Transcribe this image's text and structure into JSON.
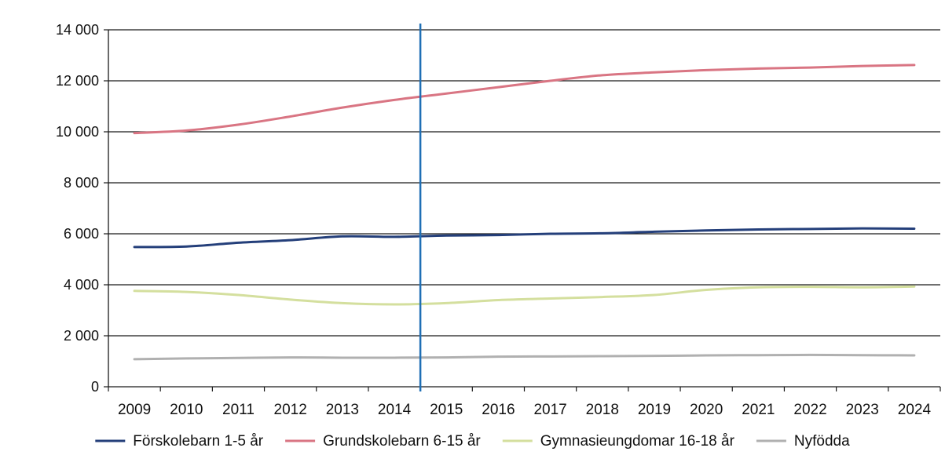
{
  "chart_data": {
    "type": "line",
    "title": "",
    "xlabel": "",
    "ylabel": "",
    "x": [
      "2009",
      "2010",
      "2011",
      "2012",
      "2013",
      "2014",
      "2015",
      "2016",
      "2017",
      "2018",
      "2019",
      "2020",
      "2021",
      "2022",
      "2023",
      "2024"
    ],
    "ylim": [
      0,
      14000
    ],
    "yticks": [
      0,
      2000,
      4000,
      6000,
      8000,
      10000,
      12000,
      14000
    ],
    "ytick_labels": [
      "0",
      "2 000",
      "4 000",
      "6 000",
      "8 000",
      "10 000",
      "12 000",
      "14 000"
    ],
    "grid": "horizontal",
    "legend_position": "bottom",
    "marker_year": "2014",
    "marker_color": "#1f6fb5",
    "series": [
      {
        "name": "Förskolebarn 1-5 år",
        "color": "#243f7a",
        "values": [
          5480,
          5500,
          5650,
          5750,
          5900,
          5880,
          5930,
          5950,
          6000,
          6020,
          6080,
          6130,
          6170,
          6190,
          6210,
          6200
        ]
      },
      {
        "name": "Grundskolebarn 6-15 år",
        "color": "#d97583",
        "values": [
          9950,
          10050,
          10280,
          10600,
          10950,
          11250,
          11500,
          11750,
          12000,
          12220,
          12330,
          12420,
          12480,
          12520,
          12580,
          12620
        ]
      },
      {
        "name": "Gymnasieungdomar 16-18 år",
        "color": "#d4df9e",
        "values": [
          3760,
          3720,
          3600,
          3420,
          3280,
          3230,
          3280,
          3400,
          3460,
          3520,
          3600,
          3800,
          3900,
          3920,
          3900,
          3930
        ]
      },
      {
        "name": "Nyfödda",
        "color": "#b0b0b0",
        "values": [
          1080,
          1110,
          1130,
          1150,
          1140,
          1140,
          1150,
          1180,
          1190,
          1200,
          1210,
          1230,
          1240,
          1250,
          1240,
          1230
        ]
      }
    ]
  }
}
